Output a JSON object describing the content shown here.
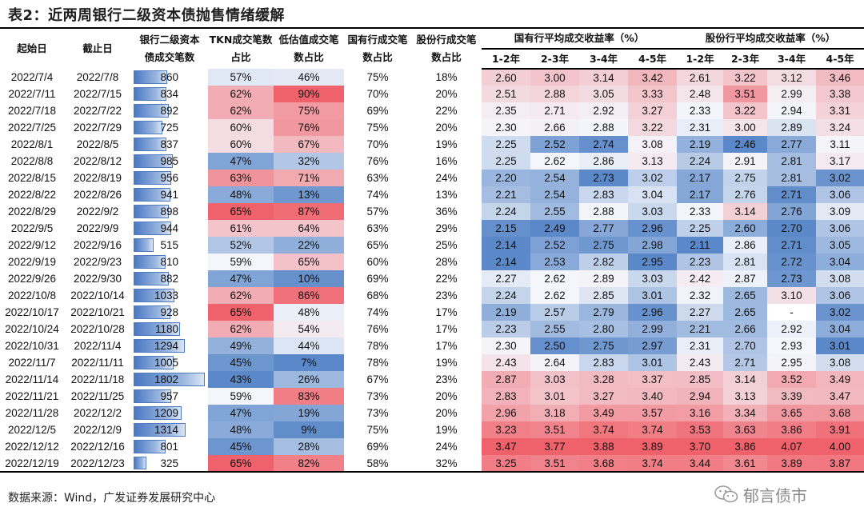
{
  "title": "表2：近两周银行二级资本债抛售情绪缓解",
  "headers": {
    "start": "起始日",
    "end": "截止日",
    "count": "银行二级资本债成交笔数",
    "tkn": "TKN成交笔数占比",
    "low": "低估值成交笔数占比",
    "state": "国有行成交笔数占比",
    "joint": "股份行成交笔数占比",
    "state_yield": "国有行平均成交收益率（%）",
    "joint_yield": "股份行平均成交收益率（%）",
    "tenors": [
      "1-2年",
      "2-3年",
      "3-4年",
      "4-5年"
    ]
  },
  "rows": [
    {
      "start": "2022/7/4",
      "end": "2022/7/8",
      "count": 860,
      "tkn": "57%",
      "low": "46%",
      "state": "75%",
      "joint": "18%",
      "sy": [
        "2.60",
        "3.00",
        "3.14",
        "3.42"
      ],
      "jy": [
        "2.61",
        "3.22",
        "3.12",
        "3.46"
      ]
    },
    {
      "start": "2022/7/11",
      "end": "2022/7/15",
      "count": 834,
      "tkn": "62%",
      "low": "90%",
      "state": "70%",
      "joint": "20%",
      "sy": [
        "2.51",
        "2.88",
        "3.05",
        "3.33"
      ],
      "jy": [
        "2.48",
        "3.51",
        "2.99",
        "3.38"
      ]
    },
    {
      "start": "2022/7/18",
      "end": "2022/7/22",
      "count": 892,
      "tkn": "62%",
      "low": "75%",
      "state": "69%",
      "joint": "22%",
      "sy": [
        "2.35",
        "2.71",
        "2.92",
        "3.27"
      ],
      "jy": [
        "2.33",
        "3.22",
        "2.94",
        "3.31"
      ]
    },
    {
      "start": "2022/7/25",
      "end": "2022/7/29",
      "count": 725,
      "tkn": "60%",
      "low": "76%",
      "state": "75%",
      "joint": "20%",
      "sy": [
        "2.30",
        "2.66",
        "2.88",
        "3.22"
      ],
      "jy": [
        "2.31",
        "3.00",
        "2.89",
        "3.24"
      ]
    },
    {
      "start": "2022/8/1",
      "end": "2022/8/5",
      "count": 837,
      "tkn": "60%",
      "low": "67%",
      "state": "70%",
      "joint": "19%",
      "sy": [
        "2.25",
        "2.52",
        "2.74",
        "3.08"
      ],
      "jy": [
        "2.19",
        "2.46",
        "2.77",
        "3.11"
      ]
    },
    {
      "start": "2022/8/8",
      "end": "2022/8/12",
      "count": 985,
      "tkn": "47%",
      "low": "32%",
      "state": "76%",
      "joint": "16%",
      "sy": [
        "2.25",
        "2.62",
        "2.86",
        "3.13"
      ],
      "jy": [
        "2.24",
        "2.91",
        "2.81",
        "3.17"
      ]
    },
    {
      "start": "2022/8/15",
      "end": "2022/8/19",
      "count": 956,
      "tkn": "63%",
      "low": "71%",
      "state": "63%",
      "joint": "24%",
      "sy": [
        "2.20",
        "2.54",
        "2.73",
        "3.02"
      ],
      "jy": [
        "2.17",
        "2.75",
        "2.81",
        "3.02"
      ]
    },
    {
      "start": "2022/8/22",
      "end": "2022/8/26",
      "count": 941,
      "tkn": "48%",
      "low": "13%",
      "state": "74%",
      "joint": "13%",
      "sy": [
        "2.21",
        "2.54",
        "2.83",
        "3.04"
      ],
      "jy": [
        "2.17",
        "2.76",
        "2.71",
        "3.06"
      ]
    },
    {
      "start": "2022/8/29",
      "end": "2022/9/2",
      "count": 898,
      "tkn": "65%",
      "low": "87%",
      "state": "57%",
      "joint": "36%",
      "sy": [
        "2.24",
        "2.55",
        "2.88",
        "3.03"
      ],
      "jy": [
        "2.33",
        "3.14",
        "2.76",
        "3.09"
      ]
    },
    {
      "start": "2022/9/5",
      "end": "2022/9/9",
      "count": 944,
      "tkn": "61%",
      "low": "64%",
      "state": "63%",
      "joint": "29%",
      "sy": [
        "2.15",
        "2.49",
        "2.77",
        "2.96"
      ],
      "jy": [
        "2.25",
        "2.60",
        "2.70",
        "3.06"
      ]
    },
    {
      "start": "2022/9/12",
      "end": "2022/9/16",
      "count": 515,
      "tkn": "52%",
      "low": "22%",
      "state": "65%",
      "joint": "25%",
      "sy": [
        "2.14",
        "2.52",
        "2.75",
        "2.98"
      ],
      "jy": [
        "2.11",
        "2.86",
        "2.71",
        "3.05"
      ]
    },
    {
      "start": "2022/9/19",
      "end": "2022/9/23",
      "count": 810,
      "tkn": "59%",
      "low": "65%",
      "state": "60%",
      "joint": "28%",
      "sy": [
        "2.14",
        "2.53",
        "2.82",
        "2.95"
      ],
      "jy": [
        "2.23",
        "2.81",
        "2.72",
        "3.04"
      ]
    },
    {
      "start": "2022/9/26",
      "end": "2022/9/30",
      "count": 882,
      "tkn": "47%",
      "low": "10%",
      "state": "69%",
      "joint": "22%",
      "sy": [
        "2.27",
        "2.62",
        "2.89",
        "3.03"
      ],
      "jy": [
        "2.42",
        "2.87",
        "2.73",
        "3.08"
      ]
    },
    {
      "start": "2022/10/8",
      "end": "2022/10/14",
      "count": 1033,
      "tkn": "62%",
      "low": "86%",
      "state": "68%",
      "joint": "23%",
      "sy": [
        "2.24",
        "2.62",
        "2.85",
        "3.01"
      ],
      "jy": [
        "2.32",
        "2.65",
        "3.10",
        "3.06"
      ]
    },
    {
      "start": "2022/10/17",
      "end": "2022/10/21",
      "count": 928,
      "tkn": "65%",
      "low": "48%",
      "state": "74%",
      "joint": "17%",
      "sy": [
        "2.19",
        "2.57",
        "2.79",
        "2.96"
      ],
      "jy": [
        "2.27",
        "2.65",
        "-",
        "3.02"
      ]
    },
    {
      "start": "2022/10/24",
      "end": "2022/10/28",
      "count": 1180,
      "tkn": "62%",
      "low": "54%",
      "state": "76%",
      "joint": "17%",
      "sy": [
        "2.23",
        "2.55",
        "2.80",
        "2.99"
      ],
      "jy": [
        "2.21",
        "2.66",
        "2.92",
        "3.04"
      ]
    },
    {
      "start": "2022/10/31",
      "end": "2022/11/4",
      "count": 1294,
      "tkn": "49%",
      "low": "44%",
      "state": "78%",
      "joint": "17%",
      "sy": [
        "2.30",
        "2.50",
        "2.75",
        "2.97"
      ],
      "jy": [
        "2.31",
        "2.70",
        "2.93",
        "3.01"
      ]
    },
    {
      "start": "2022/11/7",
      "end": "2022/11/11",
      "count": 1005,
      "tkn": "45%",
      "low": "7%",
      "state": "78%",
      "joint": "19%",
      "sy": [
        "2.43",
        "2.64",
        "2.83",
        "3.01"
      ],
      "jy": [
        "2.43",
        "2.71",
        "2.95",
        "3.08"
      ]
    },
    {
      "start": "2022/11/14",
      "end": "2022/11/18",
      "count": 1802,
      "tkn": "43%",
      "low": "26%",
      "state": "67%",
      "joint": "23%",
      "sy": [
        "2.87",
        "3.03",
        "3.28",
        "3.37"
      ],
      "jy": [
        "2.85",
        "3.14",
        "3.52",
        "3.49"
      ]
    },
    {
      "start": "2022/11/21",
      "end": "2022/11/25",
      "count": 957,
      "tkn": "59%",
      "low": "83%",
      "state": "73%",
      "joint": "20%",
      "sy": [
        "2.83",
        "3.01",
        "3.27",
        "3.40"
      ],
      "jy": [
        "2.94",
        "3.13",
        "3.39",
        "3.47"
      ]
    },
    {
      "start": "2022/11/28",
      "end": "2022/12/2",
      "count": 1209,
      "tkn": "47%",
      "low": "19%",
      "state": "73%",
      "joint": "20%",
      "sy": [
        "2.96",
        "3.18",
        "3.49",
        "3.57"
      ],
      "jy": [
        "3.16",
        "3.34",
        "3.65",
        "3.68"
      ]
    },
    {
      "start": "2022/12/5",
      "end": "2022/12/9",
      "count": 1314,
      "tkn": "48%",
      "low": "9%",
      "state": "75%",
      "joint": "19%",
      "sy": [
        "3.23",
        "3.51",
        "3.74",
        "3.74"
      ],
      "jy": [
        "3.53",
        "3.63",
        "3.86",
        "3.91"
      ]
    },
    {
      "start": "2022/12/12",
      "end": "2022/12/16",
      "count": 801,
      "tkn": "45%",
      "low": "28%",
      "state": "69%",
      "joint": "24%",
      "sy": [
        "3.47",
        "3.77",
        "3.88",
        "3.89"
      ],
      "jy": [
        "3.70",
        "3.86",
        "4.07",
        "4.00"
      ]
    },
    {
      "start": "2022/12/19",
      "end": "2022/12/23",
      "count": 325,
      "tkn": "65%",
      "low": "82%",
      "state": "58%",
      "joint": "32%",
      "sy": [
        "3.25",
        "3.51",
        "3.68",
        "3.74"
      ],
      "jy": [
        "3.44",
        "3.61",
        "3.89",
        "3.87"
      ]
    }
  ],
  "source": "数据来源：Wind，广发证券发展研究中心",
  "watermark": "郁言债市",
  "colors": {
    "low": "#5a88c9",
    "mid": "#f4f6fb",
    "high": "#f0626b",
    "bar": "#4a78c2"
  }
}
